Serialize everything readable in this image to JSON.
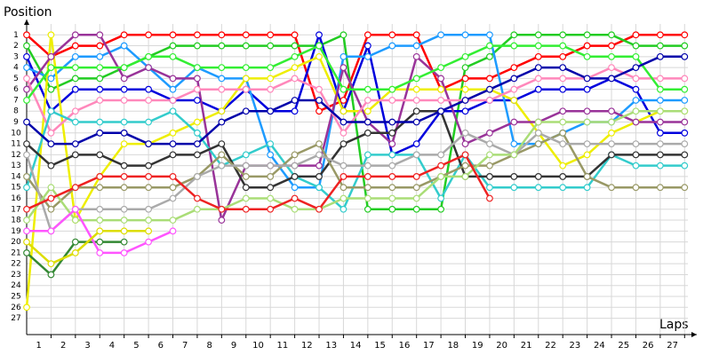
{
  "chart_data": {
    "type": "line",
    "y_label": "Position",
    "x_label": "Laps",
    "x": [
      0,
      1,
      2,
      3,
      4,
      5,
      6,
      7,
      8,
      9,
      10,
      11,
      12,
      13,
      14,
      15,
      16,
      17,
      18,
      19,
      20,
      21,
      22,
      23,
      24,
      25,
      26,
      27
    ],
    "xlim": [
      0,
      27.5
    ],
    "xticks": [
      1,
      2,
      3,
      4,
      5,
      6,
      7,
      8,
      9,
      10,
      11,
      12,
      13,
      14,
      15,
      16,
      17,
      18,
      19,
      20,
      21,
      22,
      23,
      24,
      25,
      26,
      27
    ],
    "ylim": [
      28.5,
      0
    ],
    "yticks": [
      1,
      2,
      3,
      4,
      5,
      6,
      7,
      8,
      9,
      10,
      11,
      12,
      13,
      14,
      15,
      16,
      17,
      18,
      19,
      20,
      21,
      22,
      23,
      24,
      25,
      26,
      27
    ],
    "grid": true,
    "series": [
      {
        "color": "#ff0000",
        "values": [
          1,
          3,
          2,
          2,
          1,
          1,
          1,
          1,
          1,
          1,
          1,
          1,
          8,
          7,
          1,
          1,
          1,
          6,
          5,
          5,
          4,
          3,
          3,
          2,
          2,
          1,
          1,
          1
        ]
      },
      {
        "color": "#22cc22",
        "values": [
          2,
          6,
          5,
          5,
          4,
          3,
          2,
          2,
          2,
          2,
          2,
          2,
          2,
          1,
          17,
          17,
          17,
          17,
          4,
          3,
          1,
          1,
          1,
          1,
          1,
          2,
          2,
          2
        ]
      },
      {
        "color": "#0000dd",
        "values": [
          3,
          8,
          6,
          6,
          6,
          6,
          7,
          7,
          8,
          6,
          8,
          8,
          1,
          8,
          2,
          12,
          11,
          8,
          8,
          7,
          7,
          6,
          6,
          6,
          5,
          6,
          10,
          10
        ]
      },
      {
        "color": "#1e9bff",
        "values": [
          4,
          5,
          3,
          3,
          2,
          4,
          6,
          4,
          5,
          5,
          12,
          15,
          15,
          3,
          3,
          2,
          2,
          1,
          1,
          1,
          11,
          11,
          10,
          9,
          9,
          7,
          7,
          7
        ]
      },
      {
        "color": "#eeee00",
        "values": [
          26,
          1,
          18,
          14,
          11,
          11,
          10,
          9,
          8,
          5,
          5,
          4,
          3,
          8,
          8,
          6,
          6,
          6,
          6,
          6,
          7,
          10,
          13,
          12,
          10,
          9,
          8,
          8
        ]
      },
      {
        "color": "#338833",
        "values": [
          21,
          23,
          20,
          20,
          20,
          null,
          null,
          null,
          null,
          null,
          null,
          null,
          null,
          null,
          null,
          null,
          null,
          null,
          null,
          null,
          null,
          null,
          null,
          null,
          null,
          null,
          null,
          null
        ]
      },
      {
        "color": "#993399",
        "values": [
          6,
          3,
          1,
          1,
          5,
          4,
          5,
          5,
          18,
          13,
          13,
          13,
          13,
          4,
          9,
          11,
          3,
          5,
          11,
          10,
          9,
          9,
          8,
          8,
          8,
          9,
          9,
          9
        ]
      },
      {
        "color": "#ff88bb",
        "values": [
          5,
          10,
          8,
          7,
          7,
          7,
          7,
          6,
          6,
          6,
          6,
          5,
          6,
          10,
          7,
          7,
          7,
          7,
          7,
          7,
          6,
          5,
          5,
          5,
          4,
          5,
          5,
          5
        ]
      },
      {
        "color": "#33cccc",
        "values": [
          15,
          8,
          9,
          9,
          9,
          9,
          8,
          10,
          13,
          12,
          11,
          14,
          15,
          17,
          12,
          12,
          12,
          16,
          12,
          15,
          15,
          15,
          15,
          15,
          12,
          13,
          13,
          13
        ]
      },
      {
        "color": "#333333",
        "values": [
          11,
          13,
          12,
          12,
          13,
          13,
          12,
          12,
          11,
          15,
          15,
          14,
          14,
          11,
          10,
          10,
          8,
          8,
          14,
          14,
          14,
          14,
          14,
          14,
          12,
          12,
          12,
          12
        ]
      },
      {
        "color": "#999966",
        "values": [
          14,
          17,
          15,
          15,
          15,
          15,
          15,
          14,
          12,
          14,
          14,
          12,
          11,
          15,
          15,
          15,
          15,
          14,
          13,
          13,
          12,
          11,
          10,
          14,
          15,
          15,
          15,
          15
        ]
      },
      {
        "color": "#aaaaaa",
        "values": [
          12,
          19,
          17,
          17,
          17,
          17,
          16,
          14,
          13,
          13,
          13,
          13,
          12,
          13,
          13,
          13,
          12,
          12,
          10,
          11,
          12,
          10,
          11,
          11,
          11,
          11,
          11,
          11
        ]
      },
      {
        "color": "#aadd77",
        "values": [
          18,
          15,
          18,
          18,
          18,
          18,
          18,
          17,
          17,
          16,
          16,
          17,
          17,
          16,
          16,
          16,
          16,
          14,
          14,
          12,
          12,
          9,
          9,
          9,
          9,
          8,
          8,
          8
        ]
      },
      {
        "color": "#33ee33",
        "values": [
          7,
          4,
          4,
          4,
          4,
          3,
          3,
          4,
          4,
          4,
          4,
          3,
          2,
          6,
          6,
          6,
          5,
          4,
          3,
          2,
          2,
          2,
          2,
          3,
          3,
          3,
          6,
          6
        ]
      },
      {
        "color": "#0000aa",
        "values": [
          9,
          11,
          11,
          10,
          10,
          11,
          11,
          11,
          9,
          8,
          8,
          7,
          7,
          9,
          9,
          9,
          9,
          8,
          7,
          6,
          5,
          4,
          4,
          5,
          5,
          4,
          3,
          3
        ]
      },
      {
        "color": "#ff55ff",
        "values": [
          19,
          19,
          17,
          21,
          21,
          20,
          19,
          null,
          null,
          null,
          null,
          null,
          null,
          null,
          null,
          null,
          null,
          null,
          null,
          null,
          null,
          null,
          null,
          null,
          null,
          null,
          null,
          null
        ]
      },
      {
        "color": "#ee2222",
        "values": [
          17,
          16,
          15,
          14,
          14,
          14,
          14,
          16,
          17,
          17,
          17,
          16,
          17,
          14,
          14,
          14,
          14,
          13,
          12,
          16,
          null,
          null,
          null,
          null,
          null,
          null,
          null,
          null
        ]
      },
      {
        "color": "#dddd00",
        "values": [
          20,
          22,
          21,
          19,
          19,
          19,
          null,
          null,
          null,
          null,
          null,
          null,
          null,
          null,
          null,
          null,
          null,
          null,
          null,
          null,
          null,
          null,
          null,
          null,
          null,
          null,
          null,
          null
        ]
      }
    ]
  }
}
